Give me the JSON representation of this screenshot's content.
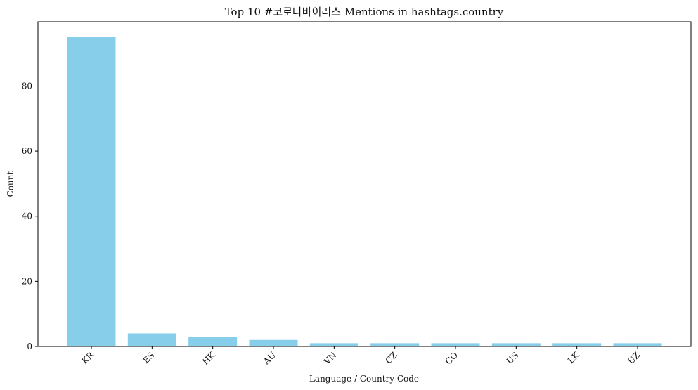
{
  "chart_data": {
    "type": "bar",
    "title": "Top 10 #코로나바이러스 Mentions in hashtags.country",
    "xlabel": "Language / Country Code",
    "ylabel": "Count",
    "categories": [
      "KR",
      "ES",
      "HK",
      "AU",
      "VN",
      "CZ",
      "CO",
      "US",
      "LK",
      "UZ"
    ],
    "values": [
      95,
      4,
      3,
      2,
      1,
      1,
      1,
      1,
      1,
      1
    ],
    "ylim": [
      0,
      100
    ],
    "yticks": [
      0,
      20,
      40,
      60,
      80
    ],
    "bar_color": "#87ceeb",
    "grid": false,
    "legend": "none"
  }
}
